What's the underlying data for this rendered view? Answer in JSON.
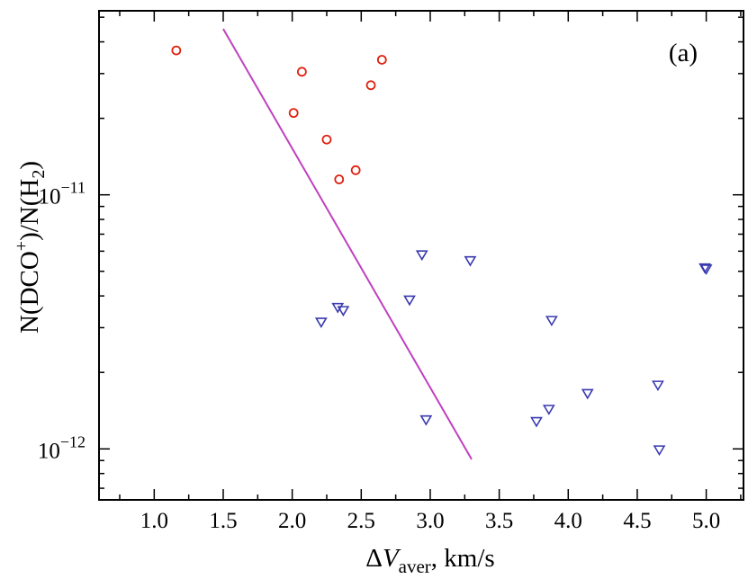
{
  "chart_data": {
    "type": "scatter",
    "panel_label": "(a)",
    "xlabel": {
      "delta": "Δ",
      "var": "V",
      "sub": "aver",
      "rest": ", km/s"
    },
    "ylabel": {
      "a": "N(DCO",
      "sup": "+",
      "b": ")/N(H",
      "sub": "2",
      "c": ")"
    },
    "x_ticks": [
      "1.0",
      "1.5",
      "2.0",
      "2.5",
      "3.0",
      "3.5",
      "4.0",
      "4.5",
      "5.0"
    ],
    "y_ticks": [
      {
        "value": 1e-11,
        "base": "10",
        "exp": "−11"
      },
      {
        "value": 1e-12,
        "base": "10",
        "exp": "−12"
      }
    ],
    "xlim": [
      0.6,
      5.27
    ],
    "ylim": [
      6.3e-13,
      5.3e-11
    ],
    "yscale": "log",
    "grid": false,
    "series": [
      {
        "marker": "circle",
        "color": "#e02010",
        "points": [
          {
            "x": 1.16,
            "y": 3.7e-11
          },
          {
            "x": 2.07,
            "y": 3.05e-11
          },
          {
            "x": 2.65,
            "y": 3.4e-11
          },
          {
            "x": 2.57,
            "y": 2.7e-11
          },
          {
            "x": 2.01,
            "y": 2.1e-11
          },
          {
            "x": 2.25,
            "y": 1.65e-11
          },
          {
            "x": 2.46,
            "y": 1.25e-11
          },
          {
            "x": 2.34,
            "y": 1.15e-11
          }
        ]
      },
      {
        "marker": "triangle-down",
        "color": "#3a3ab0",
        "points": [
          {
            "x": 2.21,
            "y": 3.15e-12
          },
          {
            "x": 2.33,
            "y": 3.6e-12
          },
          {
            "x": 2.37,
            "y": 3.5e-12
          },
          {
            "x": 2.85,
            "y": 3.85e-12
          },
          {
            "x": 2.94,
            "y": 5.8e-12
          },
          {
            "x": 3.29,
            "y": 5.5e-12
          },
          {
            "x": 2.97,
            "y": 1.3e-12
          },
          {
            "x": 3.77,
            "y": 1.28e-12
          },
          {
            "x": 3.86,
            "y": 1.43e-12
          },
          {
            "x": 3.88,
            "y": 3.2e-12
          },
          {
            "x": 4.14,
            "y": 1.65e-12
          },
          {
            "x": 4.65,
            "y": 1.78e-12
          },
          {
            "x": 4.66,
            "y": 9.9e-13
          },
          {
            "x": 4.99,
            "y": 5.15e-12
          },
          {
            "x": 5.0,
            "y": 5.1e-12
          }
        ]
      }
    ],
    "lines": [
      {
        "color": "#c040c0",
        "points": [
          {
            "x": 1.5,
            "y": 4.5e-11
          },
          {
            "x": 3.3,
            "y": 9.1e-13
          }
        ]
      }
    ]
  }
}
